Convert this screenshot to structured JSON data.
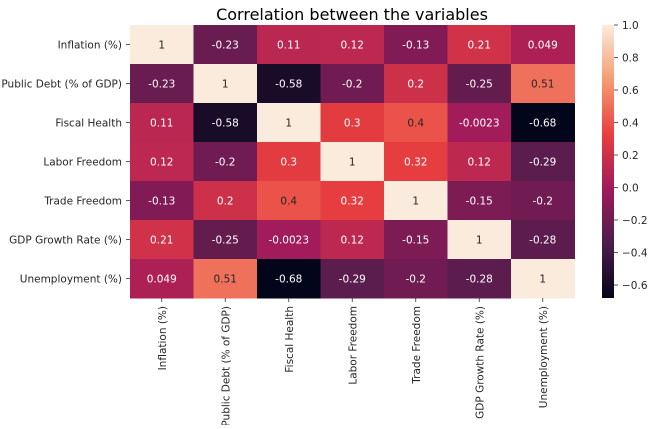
{
  "chart_data": {
    "type": "heatmap",
    "title": "Correlation between the variables",
    "xlabel": "",
    "ylabel": "",
    "row_labels": [
      "Inflation (%)",
      "Public Debt (% of GDP)",
      "Fiscal Health",
      "Labor Freedom",
      "Trade Freedom",
      "GDP Growth Rate (%)",
      "Unemployment (%)"
    ],
    "col_labels": [
      "Inflation (%)",
      "Public Debt (% of GDP)",
      "Fiscal Health",
      "Labor Freedom",
      "Trade Freedom",
      "GDP Growth Rate (%)",
      "Unemployment (%)"
    ],
    "values": [
      [
        1,
        -0.23,
        0.11,
        0.12,
        -0.13,
        0.21,
        0.049
      ],
      [
        -0.23,
        1,
        -0.58,
        -0.2,
        0.2,
        -0.25,
        0.51
      ],
      [
        0.11,
        -0.58,
        1,
        0.3,
        0.4,
        -0.0023,
        -0.68
      ],
      [
        0.12,
        -0.2,
        0.3,
        1,
        0.32,
        0.12,
        -0.29
      ],
      [
        -0.13,
        0.2,
        0.4,
        0.32,
        1,
        -0.15,
        -0.2
      ],
      [
        0.21,
        -0.25,
        -0.0023,
        0.12,
        -0.15,
        1,
        -0.28
      ],
      [
        0.049,
        0.51,
        -0.68,
        -0.29,
        -0.2,
        -0.28,
        1
      ]
    ],
    "value_labels": [
      [
        "1",
        "-0.23",
        "0.11",
        "0.12",
        "-0.13",
        "0.21",
        "0.049"
      ],
      [
        "-0.23",
        "1",
        "-0.58",
        "-0.2",
        "0.2",
        "-0.25",
        "0.51"
      ],
      [
        "0.11",
        "-0.58",
        "1",
        "0.3",
        "0.4",
        "-0.0023",
        "-0.68"
      ],
      [
        "0.12",
        "-0.2",
        "0.3",
        "1",
        "0.32",
        "0.12",
        "-0.29"
      ],
      [
        "-0.13",
        "0.2",
        "0.4",
        "0.32",
        "1",
        "-0.15",
        "-0.2"
      ],
      [
        "0.21",
        "-0.25",
        "-0.0023",
        "0.12",
        "-0.15",
        "1",
        "-0.28"
      ],
      [
        "0.049",
        "0.51",
        "-0.68",
        "-0.29",
        "-0.2",
        "-0.28",
        "1"
      ]
    ],
    "colorbar": {
      "range": [
        -0.68,
        1.0
      ],
      "ticks": [
        1.0,
        0.8,
        0.6,
        0.4,
        0.2,
        0.0,
        -0.2,
        -0.4,
        -0.6
      ],
      "tick_labels": [
        "1.0",
        "0.8",
        "0.6",
        "0.4",
        "0.2",
        "0.0",
        "−0.2",
        "−0.4",
        "−0.6"
      ]
    },
    "colormap": "rocket",
    "colormap_stops": [
      "#03051a",
      "#4c1d4b",
      "#a11a5b",
      "#e83f3f",
      "#f69c73",
      "#faebdd"
    ],
    "annotation_colors": {
      "dark_text": "#262626",
      "light_text": "#ffffff"
    },
    "grid": false,
    "legend": "none"
  }
}
